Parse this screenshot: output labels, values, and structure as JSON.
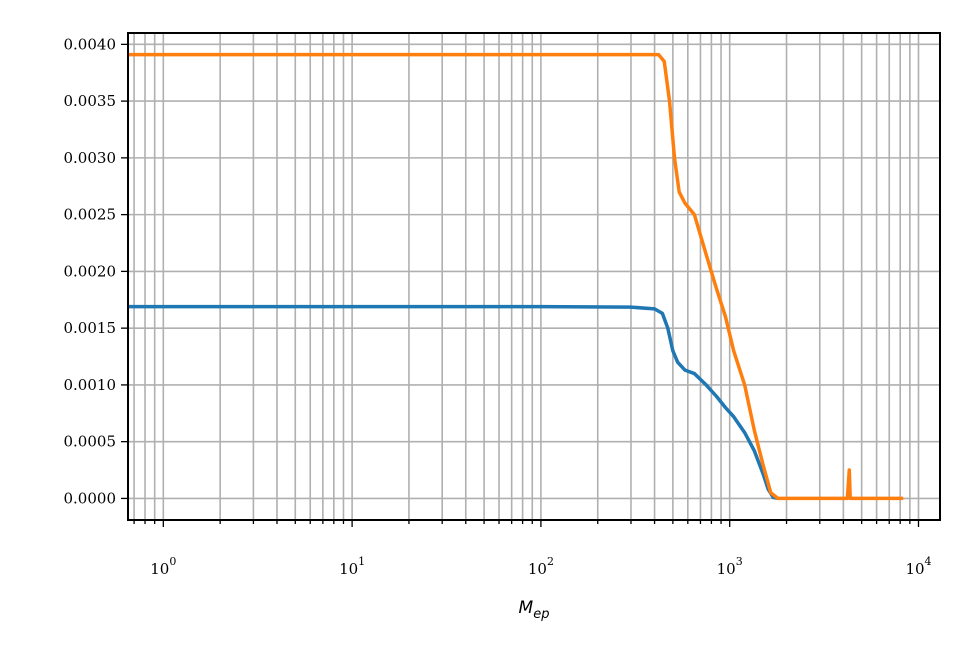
{
  "chart_data": {
    "type": "line",
    "title": "",
    "xlabel": "M",
    "xlabel_sub": "ep",
    "ylabel": "",
    "xscale": "log",
    "xlim": [
      0.65,
      13000
    ],
    "ylim": [
      -0.00019,
      0.0041
    ],
    "grid": "on (major and minor)",
    "legend": "none",
    "x_ticks": [
      {
        "base": "10",
        "exp": "0",
        "value": 1
      },
      {
        "base": "10",
        "exp": "1",
        "value": 10
      },
      {
        "base": "10",
        "exp": "2",
        "value": 100
      },
      {
        "base": "10",
        "exp": "3",
        "value": 1000
      },
      {
        "base": "10",
        "exp": "4",
        "value": 10000
      }
    ],
    "y_ticks": [
      {
        "label": "0.0000",
        "value": 0.0
      },
      {
        "label": "0.0005",
        "value": 0.0005
      },
      {
        "label": "0.0010",
        "value": 0.001
      },
      {
        "label": "0.0015",
        "value": 0.0015
      },
      {
        "label": "0.0020",
        "value": 0.002
      },
      {
        "label": "0.0025",
        "value": 0.0025
      },
      {
        "label": "0.0030",
        "value": 0.003
      },
      {
        "label": "0.0035",
        "value": 0.0035
      },
      {
        "label": "0.0040",
        "value": 0.004
      }
    ],
    "series": [
      {
        "color": "#1f77b4",
        "points": [
          [
            0.65,
            0.00169
          ],
          [
            10,
            0.00169
          ],
          [
            100,
            0.00169
          ],
          [
            300,
            0.001685
          ],
          [
            400,
            0.00167
          ],
          [
            440,
            0.00163
          ],
          [
            470,
            0.0015
          ],
          [
            500,
            0.0013
          ],
          [
            530,
            0.0012
          ],
          [
            580,
            0.00113
          ],
          [
            650,
            0.0011
          ],
          [
            750,
            0.001
          ],
          [
            850,
            0.0009
          ],
          [
            950,
            0.0008
          ],
          [
            1050,
            0.00072
          ],
          [
            1200,
            0.00058
          ],
          [
            1350,
            0.00042
          ],
          [
            1500,
            0.00022
          ],
          [
            1600,
            8e-05
          ],
          [
            1700,
            1e-05
          ],
          [
            1800,
            0.0
          ]
        ]
      },
      {
        "color": "#ff7f0e",
        "points": [
          [
            0.65,
            0.00391
          ],
          [
            10,
            0.00391
          ],
          [
            100,
            0.00391
          ],
          [
            300,
            0.00391
          ],
          [
            420,
            0.00391
          ],
          [
            450,
            0.00385
          ],
          [
            480,
            0.0035
          ],
          [
            510,
            0.003
          ],
          [
            540,
            0.0027
          ],
          [
            580,
            0.0026
          ],
          [
            650,
            0.0025
          ],
          [
            750,
            0.00215
          ],
          [
            850,
            0.00185
          ],
          [
            950,
            0.0016
          ],
          [
            1050,
            0.0013
          ],
          [
            1200,
            0.001
          ],
          [
            1350,
            0.0006
          ],
          [
            1500,
            0.0003
          ],
          [
            1650,
            5e-05
          ],
          [
            1800,
            0.0
          ],
          [
            3000,
            0.0
          ],
          [
            4200,
            0.0
          ],
          [
            4300,
            0.00025
          ],
          [
            4350,
            0.0
          ],
          [
            6000,
            0.0
          ],
          [
            8300,
            0.0
          ]
        ]
      }
    ]
  }
}
